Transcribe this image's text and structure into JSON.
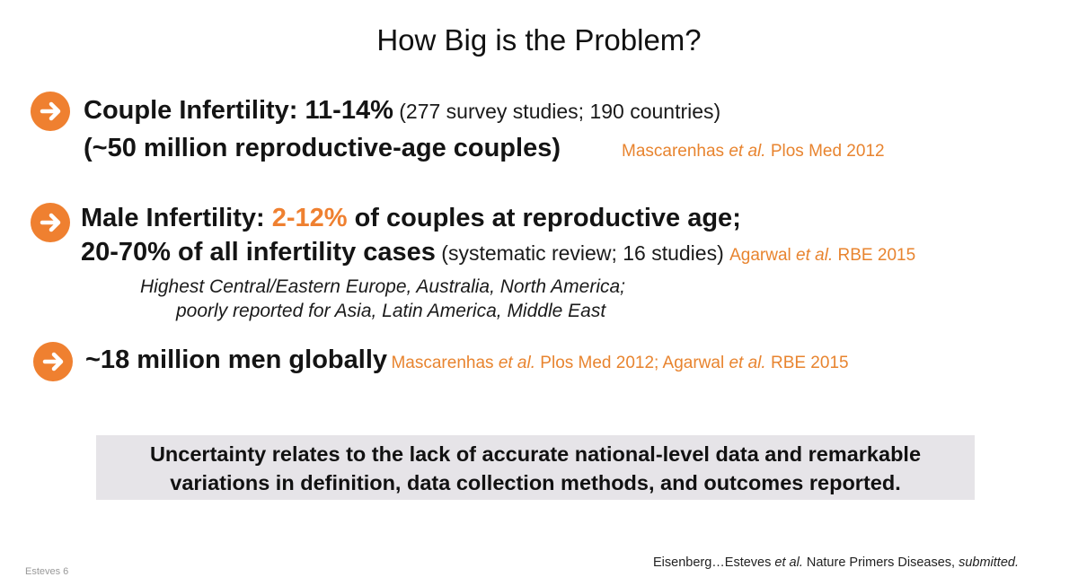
{
  "title": "How Big is the Problem?",
  "bullets": [
    {
      "bold": "Couple Infertility: 11-14%",
      "note": " (277 survey studies; 190 countries)",
      "line2_bold": "(~50 million reproductive-age couples)",
      "cite_pre": "Mascarenhas ",
      "cite_italic": "et al.",
      "cite_post": " Plos Med 2012"
    },
    {
      "bold_pre": "Male Infertility: ",
      "highlight": "2-12%",
      "bold_post": " of couples at reproductive age;",
      "line2_bold": "20-70% of all infertility cases",
      "line2_note": " (systematic review; 16 studies) ",
      "cite_pre": "Agarwal ",
      "cite_italic": "et al.",
      "cite_post": " RBE 2015",
      "detail_1": "Highest Central/Eastern Europe, Australia, North America;",
      "detail_2": "poorly reported for Asia, Latin America, Middle East"
    },
    {
      "bold": "~18 million men globally",
      "cite_a_pre": "Mascarenhas ",
      "cite_a_italic": "et al.",
      "cite_a_post": " Plos Med 2012; Agarwal ",
      "cite_b_italic": "et al.",
      "cite_b_post": " RBE 2015"
    }
  ],
  "callout_line1": "Uncertainty relates to the lack of accurate national-level data and remarkable",
  "callout_line2": "variations in definition, data collection methods, and outcomes reported.",
  "footer": {
    "pre": "Eisenberg…Esteves ",
    "italic1": "et al.",
    "mid": " Nature Primers Diseases, ",
    "italic2": "submitted."
  },
  "corner_text": "Esteves 6",
  "colors": {
    "accent": "#ef8030",
    "callout_bg": "#e6e4e8"
  },
  "icons": [
    "arrow-right-circle-icon"
  ]
}
